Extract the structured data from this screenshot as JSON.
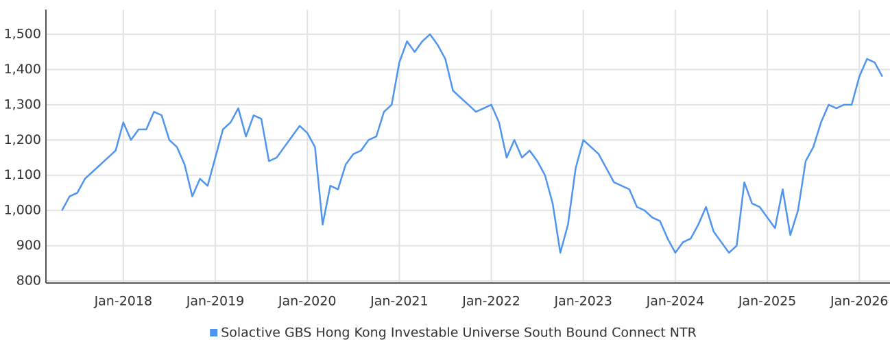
{
  "chart_data": {
    "type": "line",
    "x": [
      "2017-05",
      "2017-06",
      "2017-07",
      "2017-08",
      "2017-09",
      "2017-10",
      "2017-11",
      "2017-12",
      "2018-01",
      "2018-02",
      "2018-03",
      "2018-04",
      "2018-05",
      "2018-06",
      "2018-07",
      "2018-08",
      "2018-09",
      "2018-10",
      "2018-11",
      "2018-12",
      "2019-01",
      "2019-02",
      "2019-03",
      "2019-04",
      "2019-05",
      "2019-06",
      "2019-07",
      "2019-08",
      "2019-09",
      "2019-10",
      "2019-11",
      "2019-12",
      "2020-01",
      "2020-02",
      "2020-03",
      "2020-04",
      "2020-05",
      "2020-06",
      "2020-07",
      "2020-08",
      "2020-09",
      "2020-10",
      "2020-11",
      "2020-12",
      "2021-01",
      "2021-02",
      "2021-03",
      "2021-04",
      "2021-05",
      "2021-06",
      "2021-07",
      "2021-08",
      "2021-09",
      "2021-10",
      "2021-11",
      "2021-12",
      "2022-01",
      "2022-02",
      "2022-03",
      "2022-04",
      "2022-05",
      "2022-06",
      "2022-07",
      "2022-08",
      "2022-09",
      "2022-10",
      "2022-11",
      "2022-12",
      "2023-01",
      "2023-02",
      "2023-03",
      "2023-04",
      "2023-05",
      "2023-06",
      "2023-07",
      "2023-08",
      "2023-09",
      "2023-10",
      "2023-11",
      "2023-12",
      "2024-01",
      "2024-02",
      "2024-03",
      "2024-04",
      "2024-05",
      "2024-06",
      "2024-07",
      "2024-08",
      "2024-09",
      "2024-10",
      "2024-11",
      "2024-12",
      "2025-01",
      "2025-02",
      "2025-03",
      "2025-04",
      "2025-05",
      "2025-06",
      "2025-07",
      "2025-08",
      "2025-09",
      "2025-10",
      "2025-11",
      "2025-12",
      "2026-01",
      "2026-02",
      "2026-03",
      "2026-04"
    ],
    "series": [
      {
        "name": "Solactive GBS Hong Kong Investable Universe South Bound Connect NTR",
        "color": "#4f94ef",
        "values": [
          1000,
          1040,
          1050,
          1090,
          1110,
          1130,
          1150,
          1170,
          1250,
          1200,
          1230,
          1230,
          1280,
          1270,
          1200,
          1180,
          1130,
          1040,
          1090,
          1070,
          1150,
          1230,
          1250,
          1290,
          1210,
          1270,
          1260,
          1140,
          1150,
          1180,
          1210,
          1240,
          1220,
          1180,
          960,
          1070,
          1060,
          1130,
          1160,
          1170,
          1200,
          1210,
          1280,
          1300,
          1420,
          1480,
          1450,
          1480,
          1500,
          1470,
          1430,
          1340,
          1320,
          1300,
          1280,
          1290,
          1300,
          1250,
          1150,
          1200,
          1150,
          1170,
          1140,
          1100,
          1020,
          880,
          960,
          1120,
          1200,
          1180,
          1160,
          1120,
          1080,
          1070,
          1060,
          1010,
          1000,
          980,
          970,
          920,
          880,
          910,
          920,
          960,
          1010,
          940,
          910,
          880,
          900,
          1080,
          1020,
          1010,
          980,
          950,
          1060,
          930,
          1000,
          1140,
          1180,
          1250,
          1300,
          1290,
          1300,
          1300,
          1380,
          1430,
          1420,
          1380
        ]
      }
    ],
    "xlim": [
      "2017-03",
      "2026-05"
    ],
    "xticks": [
      {
        "value": "2018-01",
        "label": "Jan-2018"
      },
      {
        "value": "2019-01",
        "label": "Jan-2019"
      },
      {
        "value": "2020-01",
        "label": "Jan-2020"
      },
      {
        "value": "2021-01",
        "label": "Jan-2021"
      },
      {
        "value": "2022-01",
        "label": "Jan-2022"
      },
      {
        "value": "2023-01",
        "label": "Jan-2023"
      },
      {
        "value": "2024-01",
        "label": "Jan-2024"
      },
      {
        "value": "2025-01",
        "label": "Jan-2025"
      },
      {
        "value": "2026-01",
        "label": "Jan-2026"
      }
    ],
    "ylim": [
      800,
      1500
    ],
    "yticks": [
      800,
      900,
      {
        "value": 1000,
        "label": "1,000"
      },
      {
        "value": 1100,
        "label": "1,100"
      },
      {
        "value": 1200,
        "label": "1,200"
      },
      {
        "value": 1300,
        "label": "1,300"
      },
      {
        "value": 1400,
        "label": "1,400"
      },
      {
        "value": 1500,
        "label": "1,500"
      }
    ],
    "grid": true,
    "legend": "bottom"
  }
}
